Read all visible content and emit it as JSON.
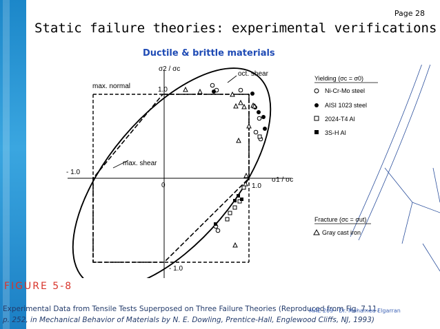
{
  "slide": {
    "title": "Static failure theories: experimental verifications",
    "page_number": "Page 28",
    "subtitle": "Ductile & brittle materials",
    "footer": "MAE 209 - Dr. Mohamed Elgarran"
  },
  "figure": {
    "figure_label": "FIGURE 5-8",
    "caption_line1": "Experimental Data from Tensile Tests Superposed on Three Failure Theories (Reproduced from Fig. 7.11,",
    "caption_line2": "p. 252, in Mechanical Behavior of Materials by N. E. Dowling, Prentice-Hall, Englewood Cliffs, NJ, 1993)",
    "labels": {
      "max_normal": "max. normal",
      "max_shear": "max. shear",
      "oct_shear": "oct. shear"
    },
    "axes": {
      "y_label": "σ2 / σc",
      "x_label": "σ1 / σc",
      "tick_pos_y": "1.0",
      "tick_neg_y": "- 1.0",
      "tick_pos_x": "1.0",
      "tick_neg_x": "- 1.0",
      "origin": "0"
    },
    "legend": {
      "yielding_title": "Yielding (σc = σ0)",
      "yielding_items": [
        {
          "label": "Ni-Cr-Mo steel",
          "marker": "open-circle"
        },
        {
          "label": "AISI 1023  steel",
          "marker": "filled-circle"
        },
        {
          "label": "2024-T4 Al",
          "marker": "open-square"
        },
        {
          "label": "3S-H Al",
          "marker": "filled-square"
        }
      ],
      "fracture_title": "Fracture (σc = σut)",
      "fracture_items": [
        {
          "label": "Gray cast iron",
          "marker": "open-triangle"
        }
      ]
    }
  }
}
